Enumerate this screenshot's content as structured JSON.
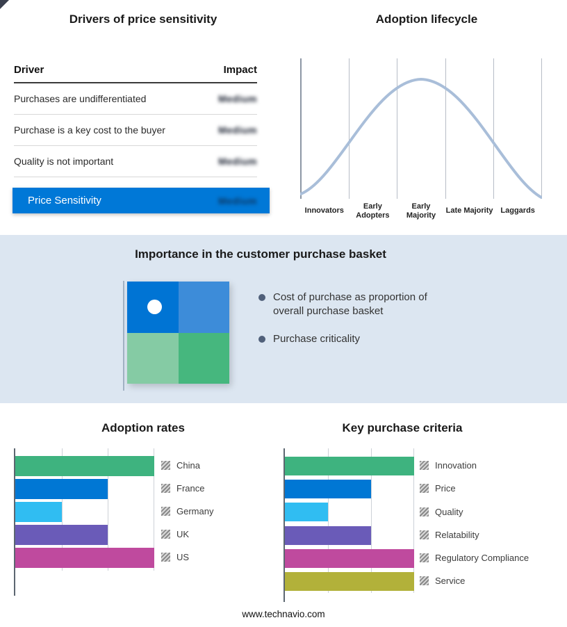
{
  "sections": {
    "purchase_basket": {
      "title": "Importance in the customer purchase basket",
      "bullets": [
        "Cost of purchase as proportion of overall purchase basket",
        "Purchase criticality"
      ],
      "quadrant_colors": [
        "#0074d4",
        "#3d8cd9",
        "#85cba4",
        "#46b77e"
      ]
    }
  },
  "footer": {
    "url": "www.technavio.com"
  },
  "chart_data": [
    {
      "type": "table",
      "title": "Drivers of price sensitivity",
      "columns": [
        "Driver",
        "Impact"
      ],
      "rows": [
        {
          "driver": "Purchases are undifferentiated",
          "impact": "Medium"
        },
        {
          "driver": "Purchase is a key cost to the buyer",
          "impact": "Medium"
        },
        {
          "driver": "Quality is not important",
          "impact": "Medium"
        }
      ],
      "summary_row": {
        "driver": "Price Sensitivity",
        "impact": "Medium"
      },
      "summary_color": "#0078d7"
    },
    {
      "type": "line",
      "title": "Adoption lifecycle",
      "shape": "bell_curve",
      "categories": [
        "Innovators",
        "Early Adopters",
        "Early Majority",
        "Late Majority",
        "Laggards"
      ],
      "line_color": "#a9bed9",
      "grid": true
    },
    {
      "type": "bar",
      "title": "Adoption rates",
      "orientation": "horizontal",
      "categories": [
        "China",
        "France",
        "Germany",
        "UK",
        "US"
      ],
      "values": [
        3,
        2,
        1,
        2,
        3
      ],
      "xlim": [
        0,
        3
      ],
      "grid": true,
      "legend_position": "right",
      "colors": [
        "#3eb37f",
        "#0077d4",
        "#30bdf2",
        "#6a5bb8",
        "#bf4a9e"
      ]
    },
    {
      "type": "bar",
      "title": "Key purchase criteria",
      "orientation": "horizontal",
      "categories": [
        "Innovation",
        "Price",
        "Quality",
        "Relatability",
        "Regulatory Compliance",
        "Service"
      ],
      "values": [
        3,
        2,
        1,
        2,
        3,
        3
      ],
      "xlim": [
        0,
        3
      ],
      "grid": true,
      "legend_position": "right",
      "colors": [
        "#3eb37f",
        "#0077d4",
        "#30bdf2",
        "#6a5bb8",
        "#bf4a9e",
        "#b2b13a"
      ]
    }
  ]
}
